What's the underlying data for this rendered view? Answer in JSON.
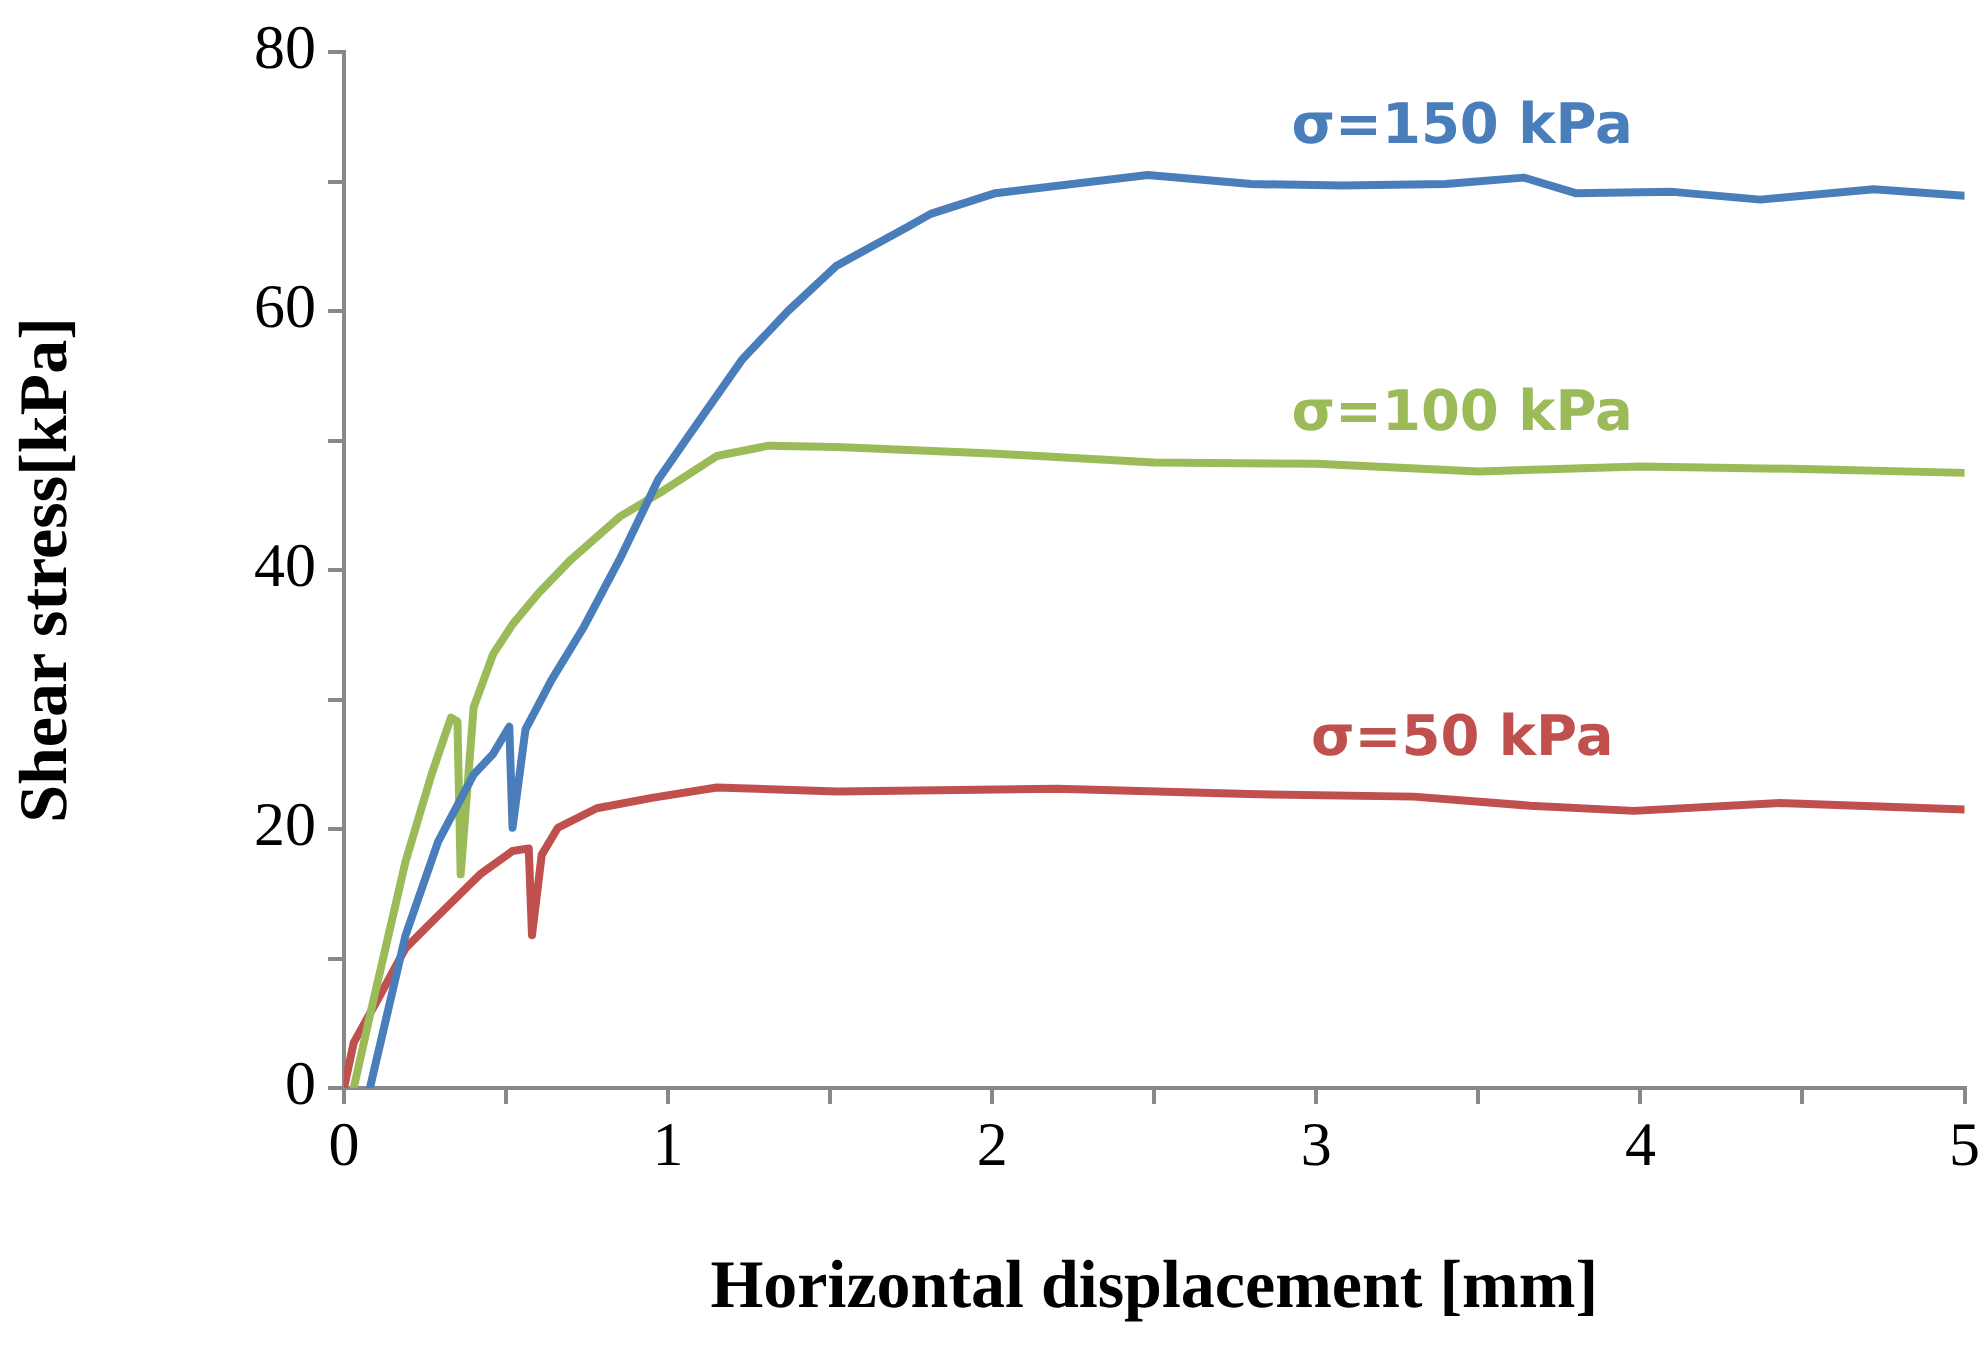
{
  "chart_data": {
    "type": "line",
    "xlabel": "Horizontal displacement [mm]",
    "ylabel": "Shear stress[kPa]",
    "xlim": [
      0,
      5
    ],
    "ylim": [
      0,
      80
    ],
    "xticks": [
      0,
      {
        "value": 0.5,
        "label": null
      },
      1,
      {
        "value": 1.5,
        "label": null
      },
      2,
      {
        "value": 2.5,
        "label": null
      },
      3,
      {
        "value": 3.5,
        "label": null
      },
      4,
      {
        "value": 4.5,
        "label": null
      },
      5
    ],
    "yticks": [
      0,
      {
        "value": 10,
        "label": null
      },
      20,
      {
        "value": 30,
        "label": null
      },
      40,
      {
        "value": 50,
        "label": null
      },
      60,
      {
        "value": 70,
        "label": null
      },
      80
    ],
    "grid": false,
    "legend": false,
    "marker": "none",
    "line_style": "solid",
    "series": [
      {
        "name": "σ=150 kPa",
        "color": "#4a7ebb",
        "x": [
          0.08,
          0.19,
          0.29,
          0.4,
          0.46,
          0.51,
          0.52,
          0.56,
          0.64,
          0.74,
          0.85,
          0.97,
          1.07,
          1.23,
          1.37,
          1.52,
          1.74,
          1.81,
          2.01,
          2.48,
          2.8,
          3.08,
          3.4,
          3.64,
          3.8,
          4.1,
          4.37,
          4.72,
          5
        ],
        "values": [
          0,
          11.8,
          19,
          24.2,
          25.8,
          27.9,
          20.1,
          27.7,
          31.5,
          35.6,
          40.8,
          47,
          50.6,
          56.3,
          60,
          63.5,
          66.5,
          67.5,
          69.1,
          70.5,
          69.8,
          69.7,
          69.8,
          70.3,
          69.1,
          69.2,
          68.6,
          69.4,
          68.9
        ]
      },
      {
        "name": "σ=100 kPa",
        "color": "#9bbb59",
        "x": [
          0.03,
          0.08,
          0.19,
          0.27,
          0.33,
          0.35,
          0.36,
          0.4,
          0.46,
          0.52,
          0.6,
          0.7,
          0.85,
          0.99,
          1.15,
          1.31,
          1.52,
          2,
          2.5,
          3,
          3.5,
          4,
          4.5,
          5
        ],
        "values": [
          0,
          5.6,
          17.5,
          24.2,
          28.6,
          28.3,
          16.5,
          29.4,
          33.5,
          35.8,
          38.2,
          40.8,
          44.1,
          46.2,
          48.8,
          49.6,
          49.5,
          49,
          48.3,
          48.2,
          47.6,
          48,
          47.8,
          47.5
        ]
      },
      {
        "name": "σ=50 kPa",
        "color": "#c0504d",
        "x": [
          0,
          0.03,
          0.11,
          0.19,
          0.29,
          0.42,
          0.52,
          0.57,
          0.58,
          0.61,
          0.66,
          0.78,
          0.95,
          1.15,
          1.52,
          2.2,
          2.79,
          3.3,
          3.66,
          3.98,
          4.43,
          5
        ],
        "values": [
          0,
          3.5,
          7.1,
          10.8,
          13.3,
          16.5,
          18.3,
          18.5,
          11.8,
          18,
          20.1,
          21.6,
          22.4,
          23.2,
          22.9,
          23.1,
          22.7,
          22.5,
          21.8,
          21.4,
          22,
          21.5
        ]
      }
    ]
  }
}
